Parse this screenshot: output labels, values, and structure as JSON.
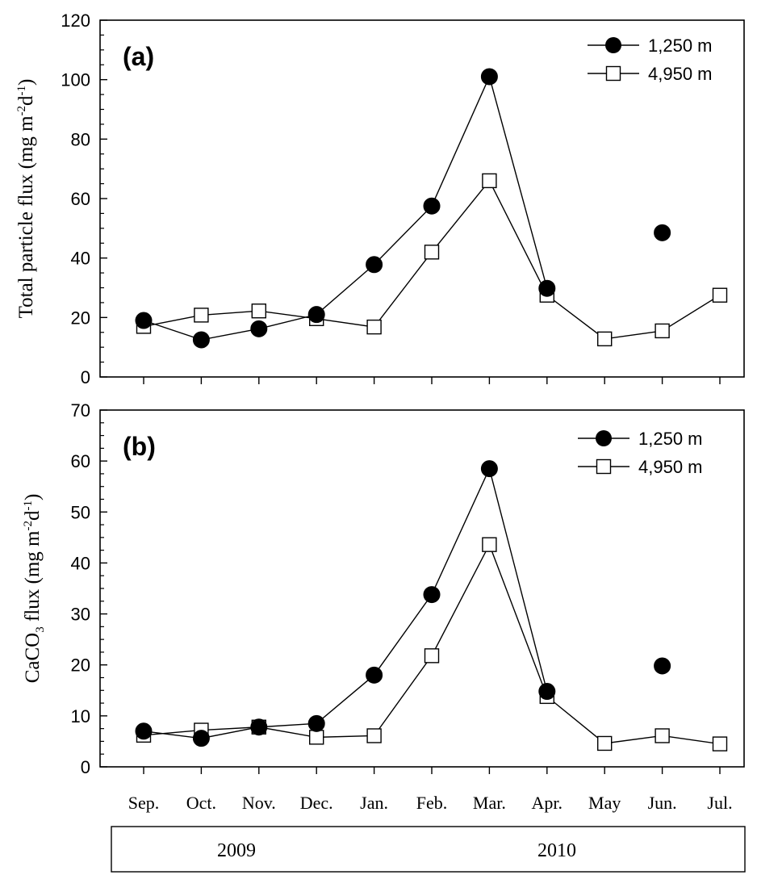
{
  "chart_data": [
    {
      "type": "line",
      "panel_label": "(a)",
      "ylabel": {
        "main": "Total particle flux (mg m",
        "sup1": "-2",
        "mid": "d",
        "sup2": "-1",
        "end": ")"
      },
      "ylim": [
        0,
        120
      ],
      "yticks": [
        0,
        20,
        40,
        60,
        80,
        100,
        120
      ],
      "categories": [
        "Sep.",
        "Oct.",
        "Nov.",
        "Dec.",
        "Jan.",
        "Feb.",
        "Mar.",
        "Apr.",
        "May",
        "Jun.",
        "Jul."
      ],
      "legend_position": "top-right",
      "series": [
        {
          "name": "1,250 m",
          "marker": "filled-circle",
          "values": [
            19,
            12.5,
            16.2,
            21,
            37.8,
            57.5,
            101,
            29.8,
            null,
            48.5,
            null
          ]
        },
        {
          "name": "4,950 m",
          "marker": "open-square",
          "values": [
            17,
            20.8,
            22.2,
            19.6,
            16.8,
            42,
            66,
            27.5,
            12.8,
            15.5,
            27.5
          ]
        }
      ]
    },
    {
      "type": "line",
      "panel_label": "(b)",
      "ylabel": {
        "main": "CaCO",
        "sub": "3",
        "main2": " flux (mg m",
        "sup1": "-2",
        "mid": "d",
        "sup2": "-1",
        "end": ")"
      },
      "ylim": [
        0,
        70
      ],
      "yticks": [
        0,
        10,
        20,
        30,
        40,
        50,
        60,
        70
      ],
      "categories": [
        "Sep.",
        "Oct.",
        "Nov.",
        "Dec.",
        "Jan.",
        "Feb.",
        "Mar.",
        "Apr.",
        "May",
        "Jun.",
        "Jul."
      ],
      "legend_position": "top-right",
      "series": [
        {
          "name": "1,250 m",
          "marker": "filled-circle",
          "values": [
            7,
            5.6,
            7.8,
            8.5,
            18,
            33.8,
            58.5,
            14.8,
            null,
            19.8,
            null
          ]
        },
        {
          "name": "4,950 m",
          "marker": "open-square",
          "values": [
            6.2,
            7.2,
            7.8,
            5.8,
            6.1,
            21.8,
            43.6,
            13.8,
            4.6,
            6.1,
            4.5
          ]
        }
      ]
    }
  ],
  "years": [
    "2009",
    "2010"
  ],
  "colors": {
    "line": "#000000",
    "background": "#ffffff"
  }
}
